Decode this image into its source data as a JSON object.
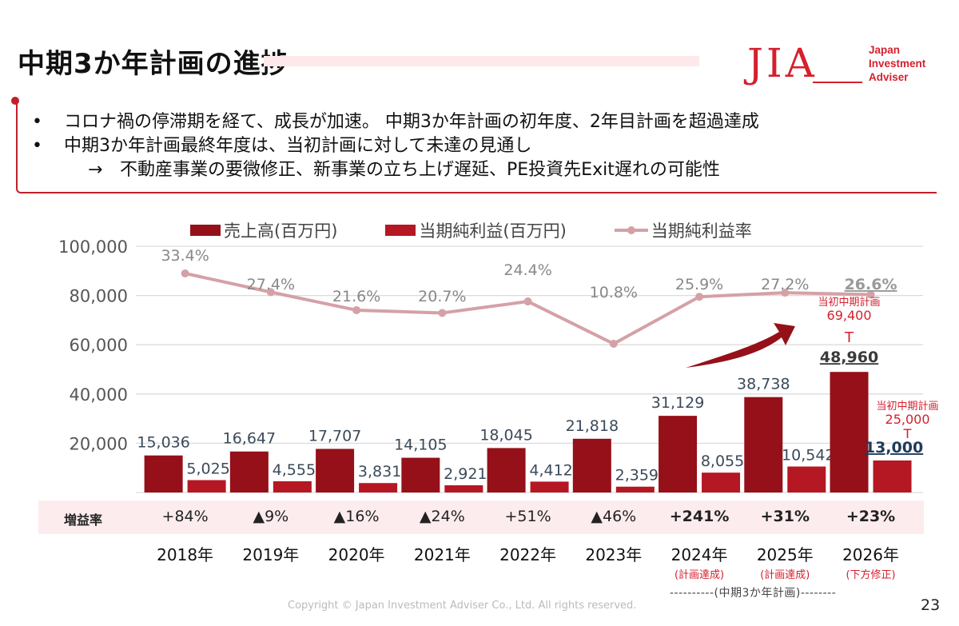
{
  "header": {
    "title": "中期3か年計画の進捗",
    "logo_mark": "JIA",
    "logo_lines": [
      "Japan",
      "Investment",
      "Adviser"
    ]
  },
  "bullets": [
    {
      "marker": "•",
      "text": "コロナ禍の停滞期を経て、成長が加速。 中期3か年計画の初年度、2年目計画を超過達成"
    },
    {
      "marker": "•",
      "text": "中期3か年計画最終年度は、当初計画に対して未達の見通し"
    },
    {
      "marker": "→",
      "text": "不動産事業の要微修正、新事業の立ち上げ遅延、PE投資先Exit遅れの可能性"
    }
  ],
  "colors": {
    "revenue": "#951019",
    "profit": "#b51723",
    "margin_line": "#d4a1a6",
    "accent": "#d5202e",
    "growth_band": "#fdecee"
  },
  "chart_data": {
    "type": "bar",
    "title": "",
    "xlabel": "",
    "ylabel": "",
    "ylim": [
      0,
      100000
    ],
    "yticks": [
      "20,000",
      "40,000",
      "60,000",
      "80,000",
      "100,000"
    ],
    "ytick_values": [
      20000,
      40000,
      60000,
      80000,
      100000
    ],
    "grid": true,
    "legend_position": "top",
    "categories": [
      "2018年",
      "2019年",
      "2020年",
      "2021年",
      "2022年",
      "2023年",
      "2024年",
      "2025年",
      "2026年"
    ],
    "series": [
      {
        "name": "売上高(百万円)",
        "type": "bar",
        "values": [
          15036,
          16647,
          17707,
          14105,
          18045,
          21818,
          31129,
          38738,
          48960
        ],
        "labels": [
          "15,036",
          "16,647",
          "17,707",
          "14,105",
          "18,045",
          "21,818",
          "31,129",
          "38,738",
          "48,960"
        ]
      },
      {
        "name": "当期純利益(百万円)",
        "type": "bar",
        "values": [
          5025,
          4555,
          3831,
          2921,
          4412,
          2359,
          8055,
          10542,
          13000
        ],
        "labels": [
          "5,025",
          "4,555",
          "3,831",
          "2,921",
          "4,412",
          "2,359",
          "8,055",
          "10,542",
          "13,000"
        ]
      },
      {
        "name": "当期純利益率",
        "type": "line",
        "axis": "secondary",
        "values": [
          33.4,
          27.4,
          21.6,
          20.7,
          24.4,
          10.8,
          25.9,
          27.2,
          26.6
        ],
        "labels": [
          "33.4%",
          "27.4%",
          "21.6%",
          "20.7%",
          "24.4%",
          "10.8%",
          "25.9%",
          "27.2%",
          "26.6%"
        ]
      }
    ],
    "annotations": {
      "revenue_plan": {
        "label": "当初中期計画",
        "value": "69,400",
        "arrow": "T"
      },
      "profit_plan": {
        "label": "当初中期計画",
        "value": "25,000",
        "arrow": "T"
      }
    },
    "growth_row": {
      "label": "増益率",
      "values": [
        "+84%",
        "▲9%",
        "▲16%",
        "▲24%",
        "+51%",
        "▲46%",
        "+241%",
        "+31%",
        "+23%"
      ]
    },
    "year_notes": [
      "",
      "",
      "",
      "",
      "",
      "",
      "(計画達成)",
      "(計画達成)",
      "(下方修正)"
    ],
    "plan_span_label": "----------(中期3か年計画)--------"
  },
  "footer": {
    "copyright": "Copyright © Japan Investment Adviser Co., Ltd. All rights reserved.",
    "page": "23"
  }
}
